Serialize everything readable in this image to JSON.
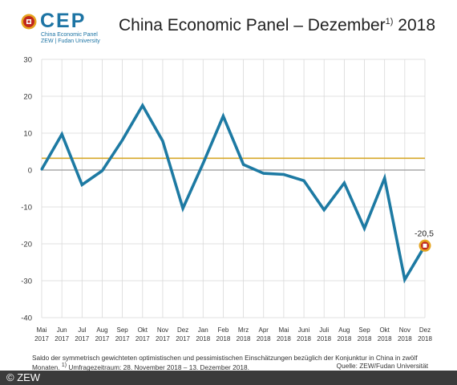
{
  "header": {
    "logo_text": "CEP",
    "logo_sub1": "China Economic Panel",
    "logo_sub2": "ZEW | Fudan University",
    "title_main": "China Economic Panel – Dezember",
    "title_sup": "1)",
    "title_year": " 2018"
  },
  "colors": {
    "series": "#1d7aa3",
    "reference_line": "#d6a82a",
    "zero_line": "#999999",
    "grid": "#d8d8d8",
    "marker_outer": "#e5a51f",
    "marker_inner": "#c0281e"
  },
  "chart_data": {
    "type": "line",
    "ylim": [
      -40,
      30
    ],
    "yticks": [
      30,
      20,
      10,
      0,
      -10,
      -20,
      -30,
      -40
    ],
    "categories": [
      [
        "Mai",
        "2017"
      ],
      [
        "Jun",
        "2017"
      ],
      [
        "Jul",
        "2017"
      ],
      [
        "Aug",
        "2017"
      ],
      [
        "Sep",
        "2017"
      ],
      [
        "Okt",
        "2017"
      ],
      [
        "Nov",
        "2017"
      ],
      [
        "Dez",
        "2017"
      ],
      [
        "Jan",
        "2018"
      ],
      [
        "Feb",
        "2018"
      ],
      [
        "Mrz",
        "2018"
      ],
      [
        "Apr",
        "2018"
      ],
      [
        "Mai",
        "2018"
      ],
      [
        "Juni",
        "2018"
      ],
      [
        "Juli",
        "2018"
      ],
      [
        "Aug",
        "2018"
      ],
      [
        "Sep",
        "2018"
      ],
      [
        "Okt",
        "2018"
      ],
      [
        "Nov",
        "2018"
      ],
      [
        "Dez",
        "2018"
      ]
    ],
    "values": [
      0.2,
      9.7,
      -4.0,
      -0.2,
      8.1,
      17.5,
      7.9,
      -10.4,
      1.8,
      14.6,
      1.5,
      -0.9,
      -1.2,
      -2.9,
      -10.8,
      -3.5,
      -15.8,
      -2.2,
      -29.7,
      -20.5
    ],
    "reference_value": 3.2,
    "grid": true,
    "annotation": "-20,5"
  },
  "footnote": {
    "line1": "Saldo der symmetrisch gewichteten optimistischen und pessimistischen Einschätzungen bezüglich der Konjunktur in China in zwölf",
    "line2": "Monaten.",
    "line2_sup": "1)",
    "line2_rest": " Umfragezeitraum: 28. November 2018 – 13. Dezember 2018.",
    "source": "Quelle: ZEW/Fudan Universität"
  },
  "copyright": "© ZEW"
}
